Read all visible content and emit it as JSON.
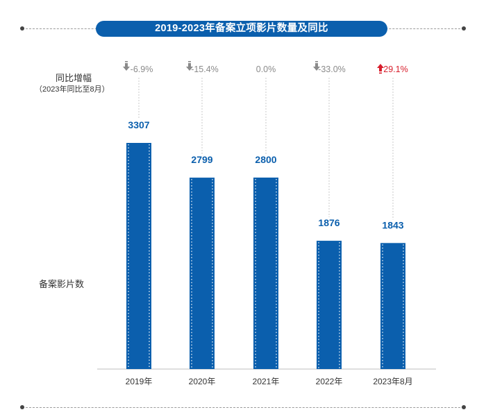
{
  "chart_data": {
    "type": "bar",
    "title": "2019-2023年备案立项影片数量及同比",
    "ylabel": "备案影片数",
    "change_label": "同比增幅",
    "change_note": "（2023年同比至8月）",
    "categories": [
      "2019年",
      "2020年",
      "2021年",
      "2022年",
      "2023年8月"
    ],
    "values": [
      3307,
      2799,
      2800,
      1876,
      1843
    ],
    "changes": [
      {
        "text": "-6.9%",
        "dir": "down"
      },
      {
        "text": "-15.4%",
        "dir": "down"
      },
      {
        "text": "0.0%",
        "dir": "none"
      },
      {
        "text": "-33.0%",
        "dir": "down"
      },
      {
        "text": "29.1%",
        "dir": "up"
      }
    ],
    "ylim": [
      0,
      3307
    ],
    "colors": {
      "bar": "#0b5fad",
      "label": "#0b5fad",
      "down": "#8a8a8a",
      "up": "#d81e2c",
      "neutral": "#8a8a8a"
    }
  }
}
